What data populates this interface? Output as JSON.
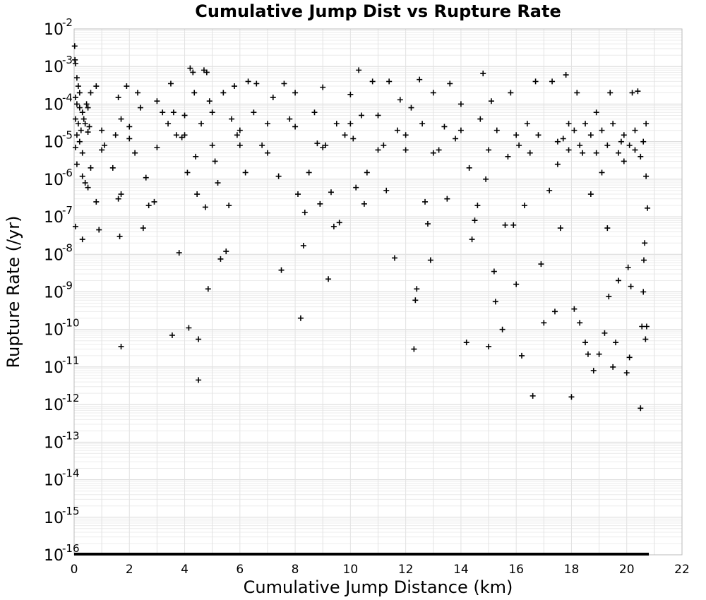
{
  "chart_data": {
    "type": "scatter",
    "title": "Cumulative Jump Dist vs Rupture Rate",
    "xlabel": "Cumulative Jump Distance (km)",
    "ylabel": "Rupture Rate (/yr)",
    "xlim": [
      0,
      22
    ],
    "ylim": [
      1e-16,
      0.01
    ],
    "yscale": "log",
    "xticks": [
      "0",
      "2",
      "4",
      "6",
      "8",
      "10",
      "12",
      "14",
      "16",
      "18",
      "20",
      "22"
    ],
    "yticks": [
      {
        "base": "10",
        "exp": "-2"
      },
      {
        "base": "10",
        "exp": "-3"
      },
      {
        "base": "10",
        "exp": "-4"
      },
      {
        "base": "10",
        "exp": "-5"
      },
      {
        "base": "10",
        "exp": "-6"
      },
      {
        "base": "10",
        "exp": "-7"
      },
      {
        "base": "10",
        "exp": "-8"
      },
      {
        "base": "10",
        "exp": "-9"
      },
      {
        "base": "10",
        "exp": "-10"
      },
      {
        "base": "10",
        "exp": "-11"
      },
      {
        "base": "10",
        "exp": "-12"
      },
      {
        "base": "10",
        "exp": "-13"
      },
      {
        "base": "10",
        "exp": "-14"
      },
      {
        "base": "10",
        "exp": "-15"
      },
      {
        "base": "10",
        "exp": "-16"
      }
    ],
    "grid": true,
    "marker": "+",
    "marker_color": "#000000",
    "floor_value": 1e-16,
    "floor_x_range": [
      0,
      20.8
    ],
    "points": [
      [
        0.02,
        0.0035
      ],
      [
        0.03,
        0.0015
      ],
      [
        0.05,
        0.0012
      ],
      [
        0.1,
        0.0005
      ],
      [
        0.15,
        0.0003
      ],
      [
        0.2,
        0.0002
      ],
      [
        0.05,
        0.00015
      ],
      [
        0.1,
        0.0001
      ],
      [
        0.2,
        8e-05
      ],
      [
        0.3,
        6e-05
      ],
      [
        0.05,
        4e-05
      ],
      [
        0.15,
        3e-05
      ],
      [
        0.25,
        2e-05
      ],
      [
        0.1,
        1.5e-05
      ],
      [
        0.2,
        1e-05
      ],
      [
        0.05,
        7e-06
      ],
      [
        0.3,
        5e-06
      ],
      [
        0.4,
        3e-05
      ],
      [
        0.5,
        8e-05
      ],
      [
        0.6,
        0.0002
      ],
      [
        0.1,
        2.5e-06
      ],
      [
        0.3,
        1.2e-06
      ],
      [
        0.4,
        8e-07
      ],
      [
        0.5,
        6e-07
      ],
      [
        0.6,
        2e-06
      ],
      [
        0.8,
        2.5e-07
      ],
      [
        0.05,
        5.5e-08
      ],
      [
        0.3,
        2.5e-08
      ],
      [
        0.9,
        4.5e-08
      ],
      [
        1.0,
        2e-05
      ],
      [
        1.1,
        8e-06
      ],
      [
        0.8,
        0.0003
      ],
      [
        1.6,
        0.00015
      ],
      [
        1.7,
        4e-05
      ],
      [
        1.6,
        3e-07
      ],
      [
        1.7,
        4e-07
      ],
      [
        1.65,
        3e-08
      ],
      [
        1.7,
        3.5e-11
      ],
      [
        1.4,
        2e-06
      ],
      [
        1.5,
        1.5e-05
      ],
      [
        1.9,
        0.0003
      ],
      [
        2.0,
        2.5e-05
      ],
      [
        2.2,
        5e-06
      ],
      [
        2.3,
        0.0002
      ],
      [
        2.4,
        8e-05
      ],
      [
        2.5,
        5e-08
      ],
      [
        2.6,
        1.1e-06
      ],
      [
        2.7,
        2e-07
      ],
      [
        2.9,
        2.5e-07
      ],
      [
        3.0,
        0.00012
      ],
      [
        3.2,
        6e-05
      ],
      [
        3.4,
        3e-05
      ],
      [
        3.5,
        0.00035
      ],
      [
        3.55,
        7e-11
      ],
      [
        3.6,
        6e-05
      ],
      [
        3.7,
        1.5e-05
      ],
      [
        3.8,
        1.1e-08
      ],
      [
        3.9,
        1.3e-05
      ],
      [
        4.0,
        5e-05
      ],
      [
        4.1,
        1.5e-06
      ],
      [
        4.15,
        1.1e-10
      ],
      [
        4.2,
        0.0009
      ],
      [
        4.3,
        0.0007
      ],
      [
        4.35,
        0.0002
      ],
      [
        4.4,
        4e-06
      ],
      [
        4.45,
        4e-07
      ],
      [
        4.5,
        5.5e-11
      ],
      [
        4.5,
        4.5e-12
      ],
      [
        4.6,
        3e-05
      ],
      [
        4.7,
        0.0008
      ],
      [
        4.75,
        1.8e-07
      ],
      [
        4.8,
        0.0007
      ],
      [
        4.85,
        1.2e-09
      ],
      [
        4.9,
        0.00012
      ],
      [
        5.0,
        6e-05
      ],
      [
        5.1,
        3e-06
      ],
      [
        5.2,
        8e-07
      ],
      [
        5.3,
        7.5e-09
      ],
      [
        5.4,
        0.0002
      ],
      [
        5.5,
        1.2e-08
      ],
      [
        5.6,
        2e-07
      ],
      [
        5.7,
        4e-05
      ],
      [
        5.8,
        0.0003
      ],
      [
        5.9,
        1.5e-05
      ],
      [
        6.0,
        8e-06
      ],
      [
        6.2,
        1.5e-06
      ],
      [
        6.3,
        0.0004
      ],
      [
        6.5,
        6e-05
      ],
      [
        6.6,
        0.00035
      ],
      [
        6.8,
        8e-06
      ],
      [
        7.0,
        3e-05
      ],
      [
        7.2,
        0.00015
      ],
      [
        7.4,
        1.2e-06
      ],
      [
        7.5,
        3.8e-09
      ],
      [
        7.6,
        0.00035
      ],
      [
        7.8,
        4e-05
      ],
      [
        8.0,
        0.0002
      ],
      [
        8.1,
        4e-07
      ],
      [
        8.2,
        2e-10
      ],
      [
        8.3,
        1.7e-08
      ],
      [
        8.35,
        1.3e-07
      ],
      [
        8.5,
        1.5e-06
      ],
      [
        8.7,
        6e-05
      ],
      [
        8.8,
        9e-06
      ],
      [
        8.9,
        2.2e-07
      ],
      [
        9.0,
        0.00028
      ],
      [
        9.1,
        8e-06
      ],
      [
        9.2,
        2.2e-09
      ],
      [
        9.3,
        4.5e-07
      ],
      [
        9.4,
        5.5e-08
      ],
      [
        9.5,
        3e-05
      ],
      [
        9.6,
        7e-08
      ],
      [
        9.8,
        1.5e-05
      ],
      [
        10.0,
        0.00018
      ],
      [
        10.1,
        1.2e-05
      ],
      [
        10.2,
        6e-07
      ],
      [
        10.3,
        0.0008
      ],
      [
        10.4,
        5e-05
      ],
      [
        10.5,
        2.2e-07
      ],
      [
        10.6,
        1.5e-06
      ],
      [
        10.8,
        0.0004
      ],
      [
        11.0,
        5e-05
      ],
      [
        11.2,
        8e-06
      ],
      [
        11.3,
        5e-07
      ],
      [
        11.4,
        0.0004
      ],
      [
        11.6,
        8e-09
      ],
      [
        11.7,
        2e-05
      ],
      [
        11.8,
        0.00013
      ],
      [
        12.0,
        6e-06
      ],
      [
        12.2,
        8e-05
      ],
      [
        12.3,
        3e-11
      ],
      [
        12.35,
        6e-10
      ],
      [
        12.4,
        1.2e-09
      ],
      [
        12.5,
        0.00045
      ],
      [
        12.6,
        3e-05
      ],
      [
        12.7,
        2.5e-07
      ],
      [
        12.8,
        6.5e-08
      ],
      [
        12.9,
        7e-09
      ],
      [
        13.0,
        0.0002
      ],
      [
        13.2,
        6e-06
      ],
      [
        13.4,
        2.5e-05
      ],
      [
        13.5,
        3e-07
      ],
      [
        13.6,
        0.00035
      ],
      [
        13.8,
        1.2e-05
      ],
      [
        14.0,
        0.0001
      ],
      [
        14.2,
        4.5e-11
      ],
      [
        14.3,
        2e-06
      ],
      [
        14.4,
        2.5e-08
      ],
      [
        14.5,
        8e-08
      ],
      [
        14.6,
        2e-07
      ],
      [
        14.7,
        4e-05
      ],
      [
        14.8,
        0.00065
      ],
      [
        14.9,
        1e-06
      ],
      [
        15.0,
        3.5e-11
      ],
      [
        15.1,
        0.00012
      ],
      [
        15.2,
        3.5e-09
      ],
      [
        15.25,
        5.5e-10
      ],
      [
        15.3,
        2e-05
      ],
      [
        15.5,
        1e-10
      ],
      [
        15.6,
        6e-08
      ],
      [
        15.7,
        4e-06
      ],
      [
        15.8,
        0.0002
      ],
      [
        15.9,
        6e-08
      ],
      [
        16.0,
        1.6e-09
      ],
      [
        16.1,
        8e-06
      ],
      [
        16.2,
        2e-11
      ],
      [
        16.3,
        2e-07
      ],
      [
        16.4,
        3e-05
      ],
      [
        16.6,
        1.7e-12
      ],
      [
        16.7,
        0.0004
      ],
      [
        16.8,
        1.5e-05
      ],
      [
        16.9,
        5.5e-09
      ],
      [
        17.0,
        1.5e-10
      ],
      [
        17.2,
        5e-07
      ],
      [
        17.3,
        0.0004
      ],
      [
        17.4,
        3e-10
      ],
      [
        17.5,
        1e-05
      ],
      [
        17.6,
        5e-08
      ],
      [
        17.8,
        0.0006
      ],
      [
        17.9,
        3e-05
      ],
      [
        18.0,
        1.6e-12
      ],
      [
        18.1,
        3.5e-10
      ],
      [
        18.2,
        0.0002
      ],
      [
        18.3,
        1.5e-10
      ],
      [
        18.4,
        5e-06
      ],
      [
        18.5,
        4.5e-11
      ],
      [
        18.6,
        2.2e-11
      ],
      [
        18.7,
        4e-07
      ],
      [
        18.8,
        8e-12
      ],
      [
        18.9,
        6e-05
      ],
      [
        19.0,
        2.2e-11
      ],
      [
        19.1,
        1.5e-06
      ],
      [
        19.2,
        8e-11
      ],
      [
        19.3,
        5e-08
      ],
      [
        19.35,
        7.5e-10
      ],
      [
        19.4,
        0.0002
      ],
      [
        19.5,
        1e-11
      ],
      [
        19.6,
        4.5e-11
      ],
      [
        19.7,
        2e-09
      ],
      [
        19.8,
        1e-05
      ],
      [
        19.9,
        3e-06
      ],
      [
        20.0,
        7e-12
      ],
      [
        20.05,
        4.5e-09
      ],
      [
        20.1,
        1.8e-11
      ],
      [
        20.15,
        1.4e-09
      ],
      [
        20.2,
        0.0002
      ],
      [
        20.3,
        6e-06
      ],
      [
        20.4,
        0.00022
      ],
      [
        20.5,
        8e-13
      ],
      [
        20.55,
        1.2e-10
      ],
      [
        20.6,
        1e-09
      ],
      [
        20.62,
        7e-09
      ],
      [
        20.65,
        2e-08
      ],
      [
        20.68,
        5.5e-11
      ],
      [
        20.7,
        3e-05
      ],
      [
        20.72,
        1.2e-10
      ],
      [
        20.75,
        1.7e-07
      ],
      [
        20.6,
        1e-05
      ],
      [
        20.5,
        4e-06
      ],
      [
        20.7,
        1.2e-06
      ],
      [
        20.3,
        2e-05
      ],
      [
        20.1,
        8e-06
      ],
      [
        19.9,
        1.5e-05
      ],
      [
        19.7,
        5e-06
      ],
      [
        19.5,
        3e-05
      ],
      [
        19.3,
        8e-06
      ],
      [
        19.1,
        2e-05
      ],
      [
        18.9,
        5e-06
      ],
      [
        18.7,
        1.5e-05
      ],
      [
        18.5,
        3e-05
      ],
      [
        18.3,
        8e-06
      ],
      [
        18.1,
        2e-05
      ],
      [
        17.9,
        6e-06
      ],
      [
        17.7,
        1.2e-05
      ],
      [
        17.5,
        2.5e-06
      ],
      [
        16.5,
        5e-06
      ],
      [
        16.0,
        1.5e-05
      ],
      [
        15.0,
        6e-06
      ],
      [
        14.0,
        2e-05
      ],
      [
        13.0,
        5e-06
      ],
      [
        12.0,
        1.5e-05
      ],
      [
        11.0,
        6e-06
      ],
      [
        10.0,
        3e-05
      ],
      [
        9.0,
        7e-06
      ],
      [
        8.0,
        2.5e-05
      ],
      [
        7.0,
        5e-06
      ],
      [
        6.0,
        2e-05
      ],
      [
        5.0,
        8e-06
      ],
      [
        4.0,
        1.5e-05
      ],
      [
        3.0,
        7e-06
      ],
      [
        2.0,
        1.2e-05
      ],
      [
        1.0,
        6e-06
      ],
      [
        0.5,
        1.8e-05
      ],
      [
        0.35,
        4e-05
      ],
      [
        0.45,
        0.0001
      ],
      [
        0.55,
        2.5e-05
      ]
    ]
  }
}
